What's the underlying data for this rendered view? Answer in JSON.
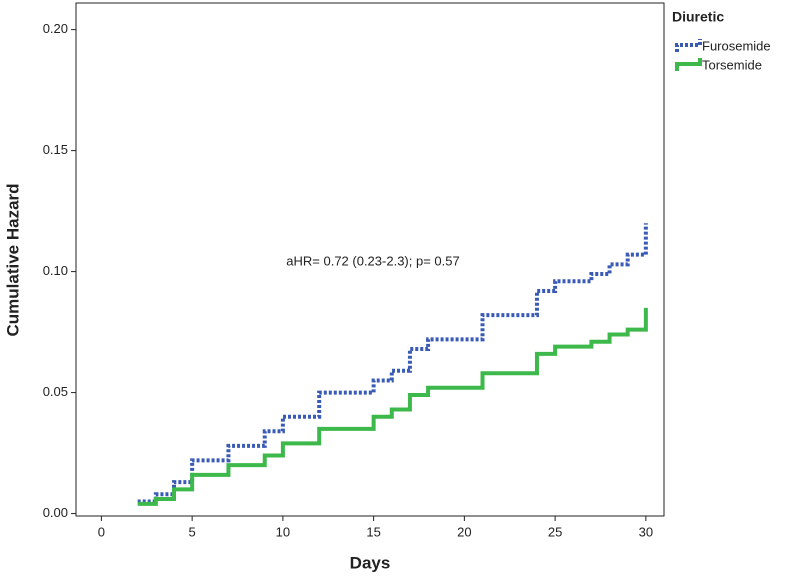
{
  "chart_data": {
    "type": "step",
    "xlabel": "Days",
    "ylabel": "Cumulative Hazard",
    "annotation": "aHR= 0.72 (0.23-2.3); p= 0.57",
    "legend_title": "Diuretic",
    "legend": "upper right",
    "x": [
      2,
      3,
      4,
      5,
      7,
      9,
      10,
      12,
      15,
      16,
      17,
      18,
      21,
      24,
      25,
      27,
      28,
      29,
      30
    ],
    "series": [
      {
        "name": "Furosemide",
        "color": "#3a5bb5",
        "dashed": true,
        "values": [
          0.005,
          0.008,
          0.013,
          0.022,
          0.028,
          0.034,
          0.04,
          0.05,
          0.055,
          0.059,
          0.068,
          0.072,
          0.082,
          0.092,
          0.096,
          0.099,
          0.103,
          0.107,
          0.12
        ]
      },
      {
        "name": "Torsemide",
        "color": "#3cb94a",
        "dashed": false,
        "values": [
          0.004,
          0.006,
          0.01,
          0.016,
          0.02,
          0.024,
          0.029,
          0.035,
          0.04,
          0.043,
          0.049,
          0.052,
          0.058,
          0.066,
          0.069,
          0.071,
          0.074,
          0.076,
          0.085
        ]
      }
    ],
    "xlim": [
      -1.4,
      31
    ],
    "ylim": [
      -0.001,
      0.211
    ],
    "xticks": [
      0,
      5,
      10,
      15,
      20,
      25,
      30
    ],
    "yticks": [
      {
        "value": 0,
        "label": "0.00"
      },
      {
        "value": 0.05,
        "label": "0.05"
      },
      {
        "value": 0.1,
        "label": "0.10"
      },
      {
        "value": 0.15,
        "label": "0.15"
      },
      {
        "value": 0.2,
        "label": "0.20"
      }
    ]
  }
}
